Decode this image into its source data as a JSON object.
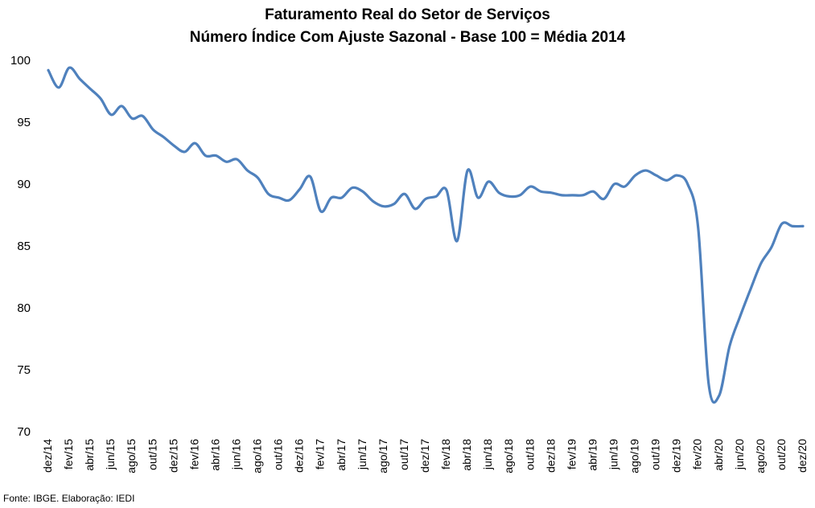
{
  "chart_data": {
    "type": "line",
    "title": "Faturamento Real do Setor de Serviços",
    "subtitle": "Número Índice Com Ajuste Sazonal - Base 100 = Média 2014",
    "ylim": [
      70,
      100
    ],
    "yticks": [
      70,
      75,
      80,
      85,
      90,
      95,
      100
    ],
    "grid": false,
    "color": "#4f81bd",
    "x": [
      "dez/14",
      "jan/15",
      "fev/15",
      "mar/15",
      "abr/15",
      "mai/15",
      "jun/15",
      "jul/15",
      "ago/15",
      "set/15",
      "out/15",
      "nov/15",
      "dez/15",
      "jan/16",
      "fev/16",
      "mar/16",
      "abr/16",
      "mai/16",
      "jun/16",
      "jul/16",
      "ago/16",
      "set/16",
      "out/16",
      "nov/16",
      "dez/16",
      "jan/17",
      "fev/17",
      "mar/17",
      "abr/17",
      "mai/17",
      "jun/17",
      "jul/17",
      "ago/17",
      "set/17",
      "out/17",
      "nov/17",
      "dez/17",
      "jan/18",
      "fev/18",
      "mar/18",
      "abr/18",
      "mai/18",
      "jun/18",
      "jul/18",
      "ago/18",
      "set/18",
      "out/18",
      "nov/18",
      "dez/18",
      "jan/19",
      "fev/19",
      "mar/19",
      "abr/19",
      "mai/19",
      "jun/19",
      "jul/19",
      "ago/19",
      "set/19",
      "out/19",
      "nov/19",
      "dez/19",
      "jan/20",
      "fev/20",
      "mar/20",
      "abr/20",
      "mai/20",
      "jun/20",
      "jul/20",
      "ago/20",
      "set/20",
      "out/20",
      "nov/20",
      "dez/20"
    ],
    "x_tick_labels": [
      "dez/14",
      "fev/15",
      "abr/15",
      "jun/15",
      "ago/15",
      "out/15",
      "dez/15",
      "fev/16",
      "abr/16",
      "jun/16",
      "ago/16",
      "out/16",
      "dez/16",
      "fev/17",
      "abr/17",
      "jun/17",
      "ago/17",
      "out/17",
      "dez/17",
      "fev/18",
      "abr/18",
      "jun/18",
      "ago/18",
      "out/18",
      "dez/18",
      "fev/19",
      "abr/19",
      "jun/19",
      "ago/19",
      "out/19",
      "dez/19",
      "fev/20",
      "abr/20",
      "jun/20",
      "ago/20",
      "out/20",
      "dez/20"
    ],
    "values": [
      99.2,
      97.8,
      99.4,
      98.5,
      97.7,
      96.9,
      95.6,
      96.3,
      95.3,
      95.5,
      94.4,
      93.8,
      93.1,
      92.6,
      93.3,
      92.3,
      92.3,
      91.8,
      92.0,
      91.1,
      90.5,
      89.2,
      88.9,
      88.7,
      89.6,
      90.6,
      87.8,
      88.9,
      88.9,
      89.7,
      89.4,
      88.6,
      88.2,
      88.4,
      89.2,
      88.0,
      88.8,
      89.0,
      89.5,
      85.4,
      91.1,
      88.9,
      90.2,
      89.3,
      89.0,
      89.1,
      89.8,
      89.4,
      89.3,
      89.1,
      89.1,
      89.1,
      89.4,
      88.8,
      90.0,
      89.8,
      90.7,
      91.1,
      90.7,
      90.3,
      90.7,
      90.0,
      86.5,
      73.9,
      72.9,
      76.9,
      79.3,
      81.5,
      83.6,
      84.9,
      86.8,
      86.6,
      86.6
    ]
  },
  "source": "Fonte: IBGE. Elaboração: IEDI"
}
